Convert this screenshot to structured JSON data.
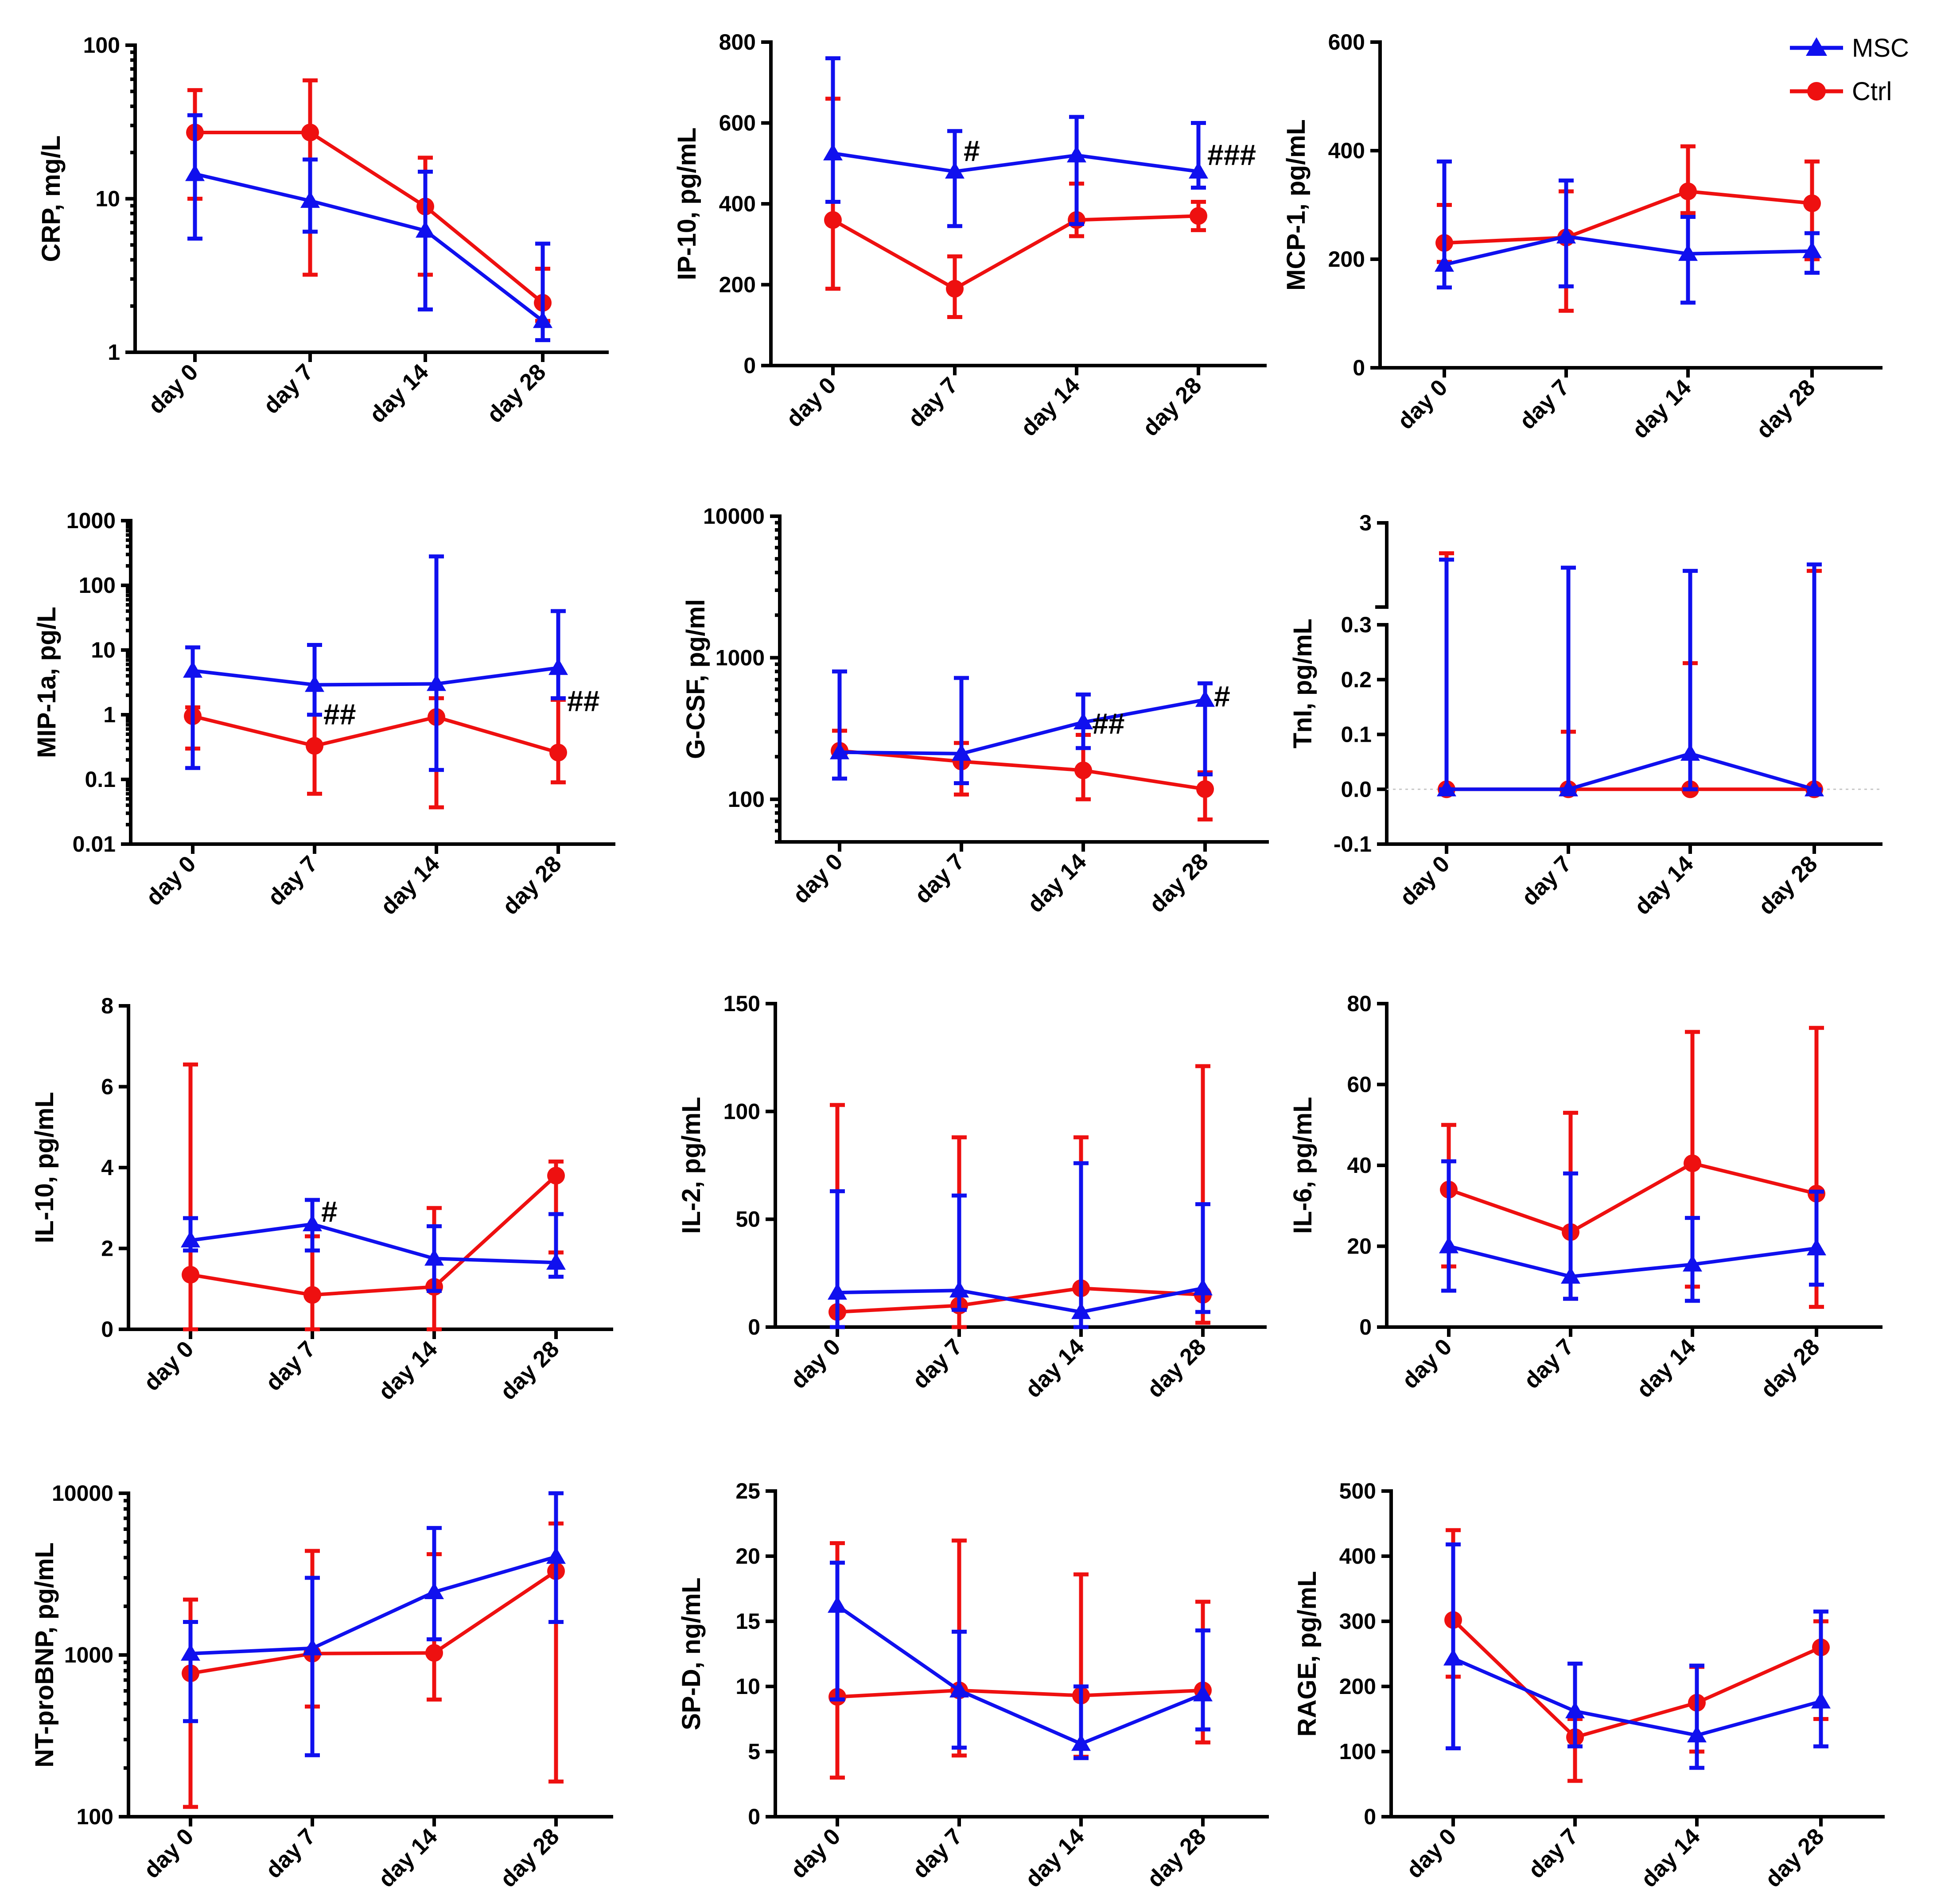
{
  "legend": [
    {
      "name": "MSC",
      "marker": "triangle",
      "color": "#1010ee"
    },
    {
      "name": "Ctrl",
      "marker": "circle",
      "color": "#ee1010"
    }
  ],
  "chart_data": [
    {
      "type": "line",
      "ylabel": "CRP, mg/L",
      "scale": "log",
      "ylim": [
        1,
        100
      ],
      "yticks": [
        1,
        10,
        100
      ],
      "ytick_labels": [
        "1",
        "10",
        "100"
      ],
      "categories": [
        "day 0",
        "day 7",
        "day 14",
        "day 28"
      ],
      "series": [
        {
          "name": "MSC",
          "values": [
            14.5,
            9.7,
            6.2,
            1.6
          ],
          "err_low": [
            5.5,
            6.1,
            1.9,
            1.2
          ],
          "err_high": [
            35,
            18,
            15,
            5.1
          ]
        },
        {
          "name": "Ctrl",
          "values": [
            27,
            27,
            8.9,
            2.1
          ],
          "err_low": [
            10,
            3.2,
            3.2,
            1.6
          ],
          "err_high": [
            51,
            59,
            18.5,
            3.5
          ]
        }
      ],
      "annotations": []
    },
    {
      "type": "line",
      "ylabel": "IP-10, pg/mL",
      "scale": "linear",
      "ylim": [
        0,
        800
      ],
      "yticks": [
        0,
        200,
        400,
        600,
        800
      ],
      "ytick_labels": [
        "0",
        "200",
        "400",
        "600",
        "800"
      ],
      "categories": [
        "day 0",
        "day 7",
        "day 14",
        "day 28"
      ],
      "series": [
        {
          "name": "MSC",
          "values": [
            525,
            480,
            520,
            480
          ],
          "err_low": [
            405,
            345,
            350,
            440
          ],
          "err_high": [
            760,
            580,
            615,
            600
          ]
        },
        {
          "name": "Ctrl",
          "values": [
            360,
            190,
            360,
            370
          ],
          "err_low": [
            190,
            120,
            320,
            335
          ],
          "err_high": [
            660,
            270,
            450,
            405
          ]
        }
      ],
      "annotations": [
        {
          "text": "#",
          "x": "day 7",
          "y": 530
        },
        {
          "text": "###",
          "x": "day 28",
          "y": 520
        }
      ]
    },
    {
      "type": "line",
      "ylabel": "MCP-1, pg/mL",
      "scale": "linear",
      "ylim": [
        0,
        600
      ],
      "yticks": [
        0,
        200,
        400,
        600
      ],
      "ytick_labels": [
        "0",
        "200",
        "400",
        "600"
      ],
      "categories": [
        "day 0",
        "day 7",
        "day 14",
        "day 28"
      ],
      "series": [
        {
          "name": "MSC",
          "values": [
            190,
            242,
            210,
            215
          ],
          "err_low": [
            148,
            150,
            120,
            175
          ],
          "err_high": [
            380,
            345,
            278,
            248
          ]
        },
        {
          "name": "Ctrl",
          "values": [
            230,
            240,
            325,
            303
          ],
          "err_low": [
            195,
            105,
            285,
            200
          ],
          "err_high": [
            300,
            325,
            408,
            380
          ]
        }
      ],
      "annotations": []
    },
    {
      "type": "line",
      "ylabel": "MIP-1a, pg/L",
      "scale": "log",
      "ylim": [
        0.01,
        1000
      ],
      "yticks": [
        0.01,
        0.1,
        1,
        10,
        100,
        1000
      ],
      "ytick_labels": [
        "0.01",
        "0.1",
        "1",
        "10",
        "100",
        "1000"
      ],
      "categories": [
        "day 0",
        "day 7",
        "day 14",
        "day 28"
      ],
      "series": [
        {
          "name": "MSC",
          "values": [
            4.8,
            2.9,
            3.0,
            5.3
          ],
          "err_low": [
            0.15,
            1.0,
            0.14,
            1.8
          ],
          "err_high": [
            11,
            12,
            280,
            40
          ]
        },
        {
          "name": "Ctrl",
          "values": [
            0.95,
            0.33,
            0.92,
            0.26
          ],
          "err_low": [
            0.3,
            0.06,
            0.037,
            0.09
          ],
          "err_high": [
            1.3,
            1.0,
            1.8,
            1.7
          ]
        }
      ],
      "annotations": [
        {
          "text": "##",
          "x": "day 7",
          "y": 1.0
        },
        {
          "text": "##",
          "x": "day 28",
          "y": 1.6
        }
      ]
    },
    {
      "type": "line",
      "ylabel": "G-CSF, pg/ml",
      "scale": "log",
      "ylim": [
        50,
        10000
      ],
      "yticks": [
        100,
        1000,
        10000
      ],
      "ytick_labels": [
        "100",
        "1000",
        "10000"
      ],
      "categories": [
        "day 0",
        "day 7",
        "day 14",
        "day 28"
      ],
      "series": [
        {
          "name": "MSC",
          "values": [
            215,
            210,
            350,
            505
          ],
          "err_low": [
            140,
            130,
            230,
            150
          ],
          "err_high": [
            800,
            720,
            550,
            660
          ]
        },
        {
          "name": "Ctrl",
          "values": [
            220,
            185,
            160,
            118
          ],
          "err_low": [
            205,
            108,
            100,
            72
          ],
          "err_high": [
            305,
            250,
            285,
            155
          ]
        }
      ],
      "annotations": [
        {
          "text": "##",
          "x": "day 14",
          "y": 340
        },
        {
          "text": "#",
          "x": "day 28",
          "y": 530
        }
      ]
    },
    {
      "type": "line",
      "ylabel": "TnI, pg/mL",
      "scale": "broken",
      "ylim_lower": [
        -0.1,
        0.3
      ],
      "ylim_upper": [
        0.3,
        3
      ],
      "yticks": [
        -0.1,
        0.0,
        0.1,
        0.2,
        0.3,
        3
      ],
      "ytick_labels": [
        "-0.1",
        "0.0",
        "0.1",
        "0.2",
        "0.3",
        "3"
      ],
      "categories": [
        "day 0",
        "day 7",
        "day 14",
        "day 28"
      ],
      "series": [
        {
          "name": "MSC",
          "values": [
            0.0,
            0.0,
            0.065,
            0.0
          ],
          "err_low": [
            0.0,
            0.0,
            0.0,
            0.0
          ],
          "err_high": [
            1.85,
            1.6,
            1.5,
            1.7
          ]
        },
        {
          "name": "Ctrl",
          "values": [
            0.0,
            0.0,
            0.0,
            0.0
          ],
          "err_low": [
            0.0,
            0.0,
            0.0,
            0.0
          ],
          "err_high": [
            2.05,
            0.105,
            0.23,
            1.5
          ]
        }
      ],
      "annotations": []
    },
    {
      "type": "line",
      "ylabel": "IL-10, pg/mL",
      "scale": "linear",
      "ylim": [
        0,
        8
      ],
      "yticks": [
        0,
        2,
        4,
        6,
        8
      ],
      "ytick_labels": [
        "0",
        "2",
        "4",
        "6",
        "8"
      ],
      "categories": [
        "day 0",
        "day 7",
        "day 14",
        "day 28"
      ],
      "series": [
        {
          "name": "MSC",
          "values": [
            2.2,
            2.6,
            1.75,
            1.65
          ],
          "err_low": [
            1.95,
            1.95,
            0.95,
            1.3
          ],
          "err_high": [
            2.75,
            3.2,
            2.55,
            2.85
          ]
        },
        {
          "name": "Ctrl",
          "values": [
            1.35,
            0.85,
            1.05,
            3.8
          ],
          "err_low": [
            0.0,
            0.0,
            0.0,
            1.9
          ],
          "err_high": [
            6.55,
            2.3,
            3.0,
            4.15
          ]
        }
      ],
      "annotations": [
        {
          "text": "#",
          "x": "day 7",
          "y": 2.9
        }
      ]
    },
    {
      "type": "line",
      "ylabel": "IL-2, pg/mL",
      "scale": "linear",
      "ylim": [
        0,
        150
      ],
      "yticks": [
        0,
        50,
        100,
        150
      ],
      "ytick_labels": [
        "0",
        "50",
        "100",
        "150"
      ],
      "categories": [
        "day 0",
        "day 7",
        "day 14",
        "day 28"
      ],
      "series": [
        {
          "name": "MSC",
          "values": [
            16,
            17,
            7,
            18
          ],
          "err_low": [
            0,
            8,
            0,
            7
          ],
          "err_high": [
            63,
            61,
            76,
            57
          ]
        },
        {
          "name": "Ctrl",
          "values": [
            7,
            10,
            18,
            15
          ],
          "err_low": [
            0,
            0,
            0,
            2
          ],
          "err_high": [
            103,
            88,
            88,
            121
          ]
        }
      ],
      "annotations": []
    },
    {
      "type": "line",
      "ylabel": "IL-6, pg/mL",
      "scale": "linear",
      "ylim": [
        0,
        80
      ],
      "yticks": [
        0,
        20,
        40,
        60,
        80
      ],
      "ytick_labels": [
        "0",
        "20",
        "40",
        "60",
        "80"
      ],
      "categories": [
        "day 0",
        "day 7",
        "day 14",
        "day 28"
      ],
      "series": [
        {
          "name": "MSC",
          "values": [
            20,
            12.5,
            15.5,
            19.5
          ],
          "err_low": [
            9,
            7,
            6.5,
            10.5
          ],
          "err_high": [
            41,
            38,
            27,
            33.5
          ]
        },
        {
          "name": "Ctrl",
          "values": [
            34,
            23.5,
            40.5,
            33
          ],
          "err_low": [
            15,
            7,
            10,
            5
          ],
          "err_high": [
            50,
            53,
            73,
            74
          ]
        }
      ],
      "annotations": []
    },
    {
      "type": "line",
      "ylabel": "NT-proBNP, pg/mL",
      "scale": "log",
      "ylim": [
        100,
        10000
      ],
      "yticks": [
        100,
        1000,
        10000
      ],
      "ytick_labels": [
        "100",
        "1000",
        "10000"
      ],
      "categories": [
        "day 0",
        "day 7",
        "day 14",
        "day 28"
      ],
      "series": [
        {
          "name": "MSC",
          "values": [
            1020,
            1100,
            2450,
            4050
          ],
          "err_low": [
            390,
            240,
            1250,
            1600
          ],
          "err_high": [
            1600,
            3000,
            6100,
            10000
          ]
        },
        {
          "name": "Ctrl",
          "values": [
            770,
            1020,
            1030,
            3300
          ],
          "err_low": [
            115,
            480,
            530,
            165
          ],
          "err_high": [
            2200,
            4400,
            4200,
            6500
          ]
        }
      ],
      "annotations": []
    },
    {
      "type": "line",
      "ylabel": "SP-D, ng/mL",
      "scale": "linear",
      "ylim": [
        0,
        25
      ],
      "yticks": [
        0,
        5,
        10,
        15,
        20,
        25
      ],
      "ytick_labels": [
        "0",
        "5",
        "10",
        "15",
        "20",
        "25"
      ],
      "categories": [
        "day 0",
        "day 7",
        "day 14",
        "day 28"
      ],
      "series": [
        {
          "name": "MSC",
          "values": [
            16.2,
            9.7,
            5.6,
            9.4
          ],
          "err_low": [
            9.0,
            5.3,
            4.5,
            6.7
          ],
          "err_high": [
            19.5,
            14.2,
            10.0,
            14.3
          ]
        },
        {
          "name": "Ctrl",
          "values": [
            9.2,
            9.7,
            9.3,
            9.7
          ],
          "err_low": [
            3.0,
            4.7,
            4.6,
            5.7
          ],
          "err_high": [
            21.0,
            21.2,
            18.6,
            16.5
          ]
        }
      ],
      "annotations": []
    },
    {
      "type": "line",
      "ylabel": "RAGE, pg/mL",
      "scale": "linear",
      "ylim": [
        0,
        500
      ],
      "yticks": [
        0,
        100,
        200,
        300,
        400,
        500
      ],
      "ytick_labels": [
        "0",
        "100",
        "200",
        "300",
        "400",
        "500"
      ],
      "categories": [
        "day 0",
        "day 7",
        "day 14",
        "day 28"
      ],
      "series": [
        {
          "name": "MSC",
          "values": [
            243,
            162,
            125,
            177
          ],
          "err_low": [
            105,
            108,
            75,
            108
          ],
          "err_high": [
            418,
            235,
            232,
            315
          ]
        },
        {
          "name": "Ctrl",
          "values": [
            302,
            122,
            175,
            260
          ],
          "err_low": [
            215,
            55,
            100,
            150
          ],
          "err_high": [
            440,
            150,
            230,
            300
          ]
        }
      ],
      "annotations": []
    }
  ]
}
